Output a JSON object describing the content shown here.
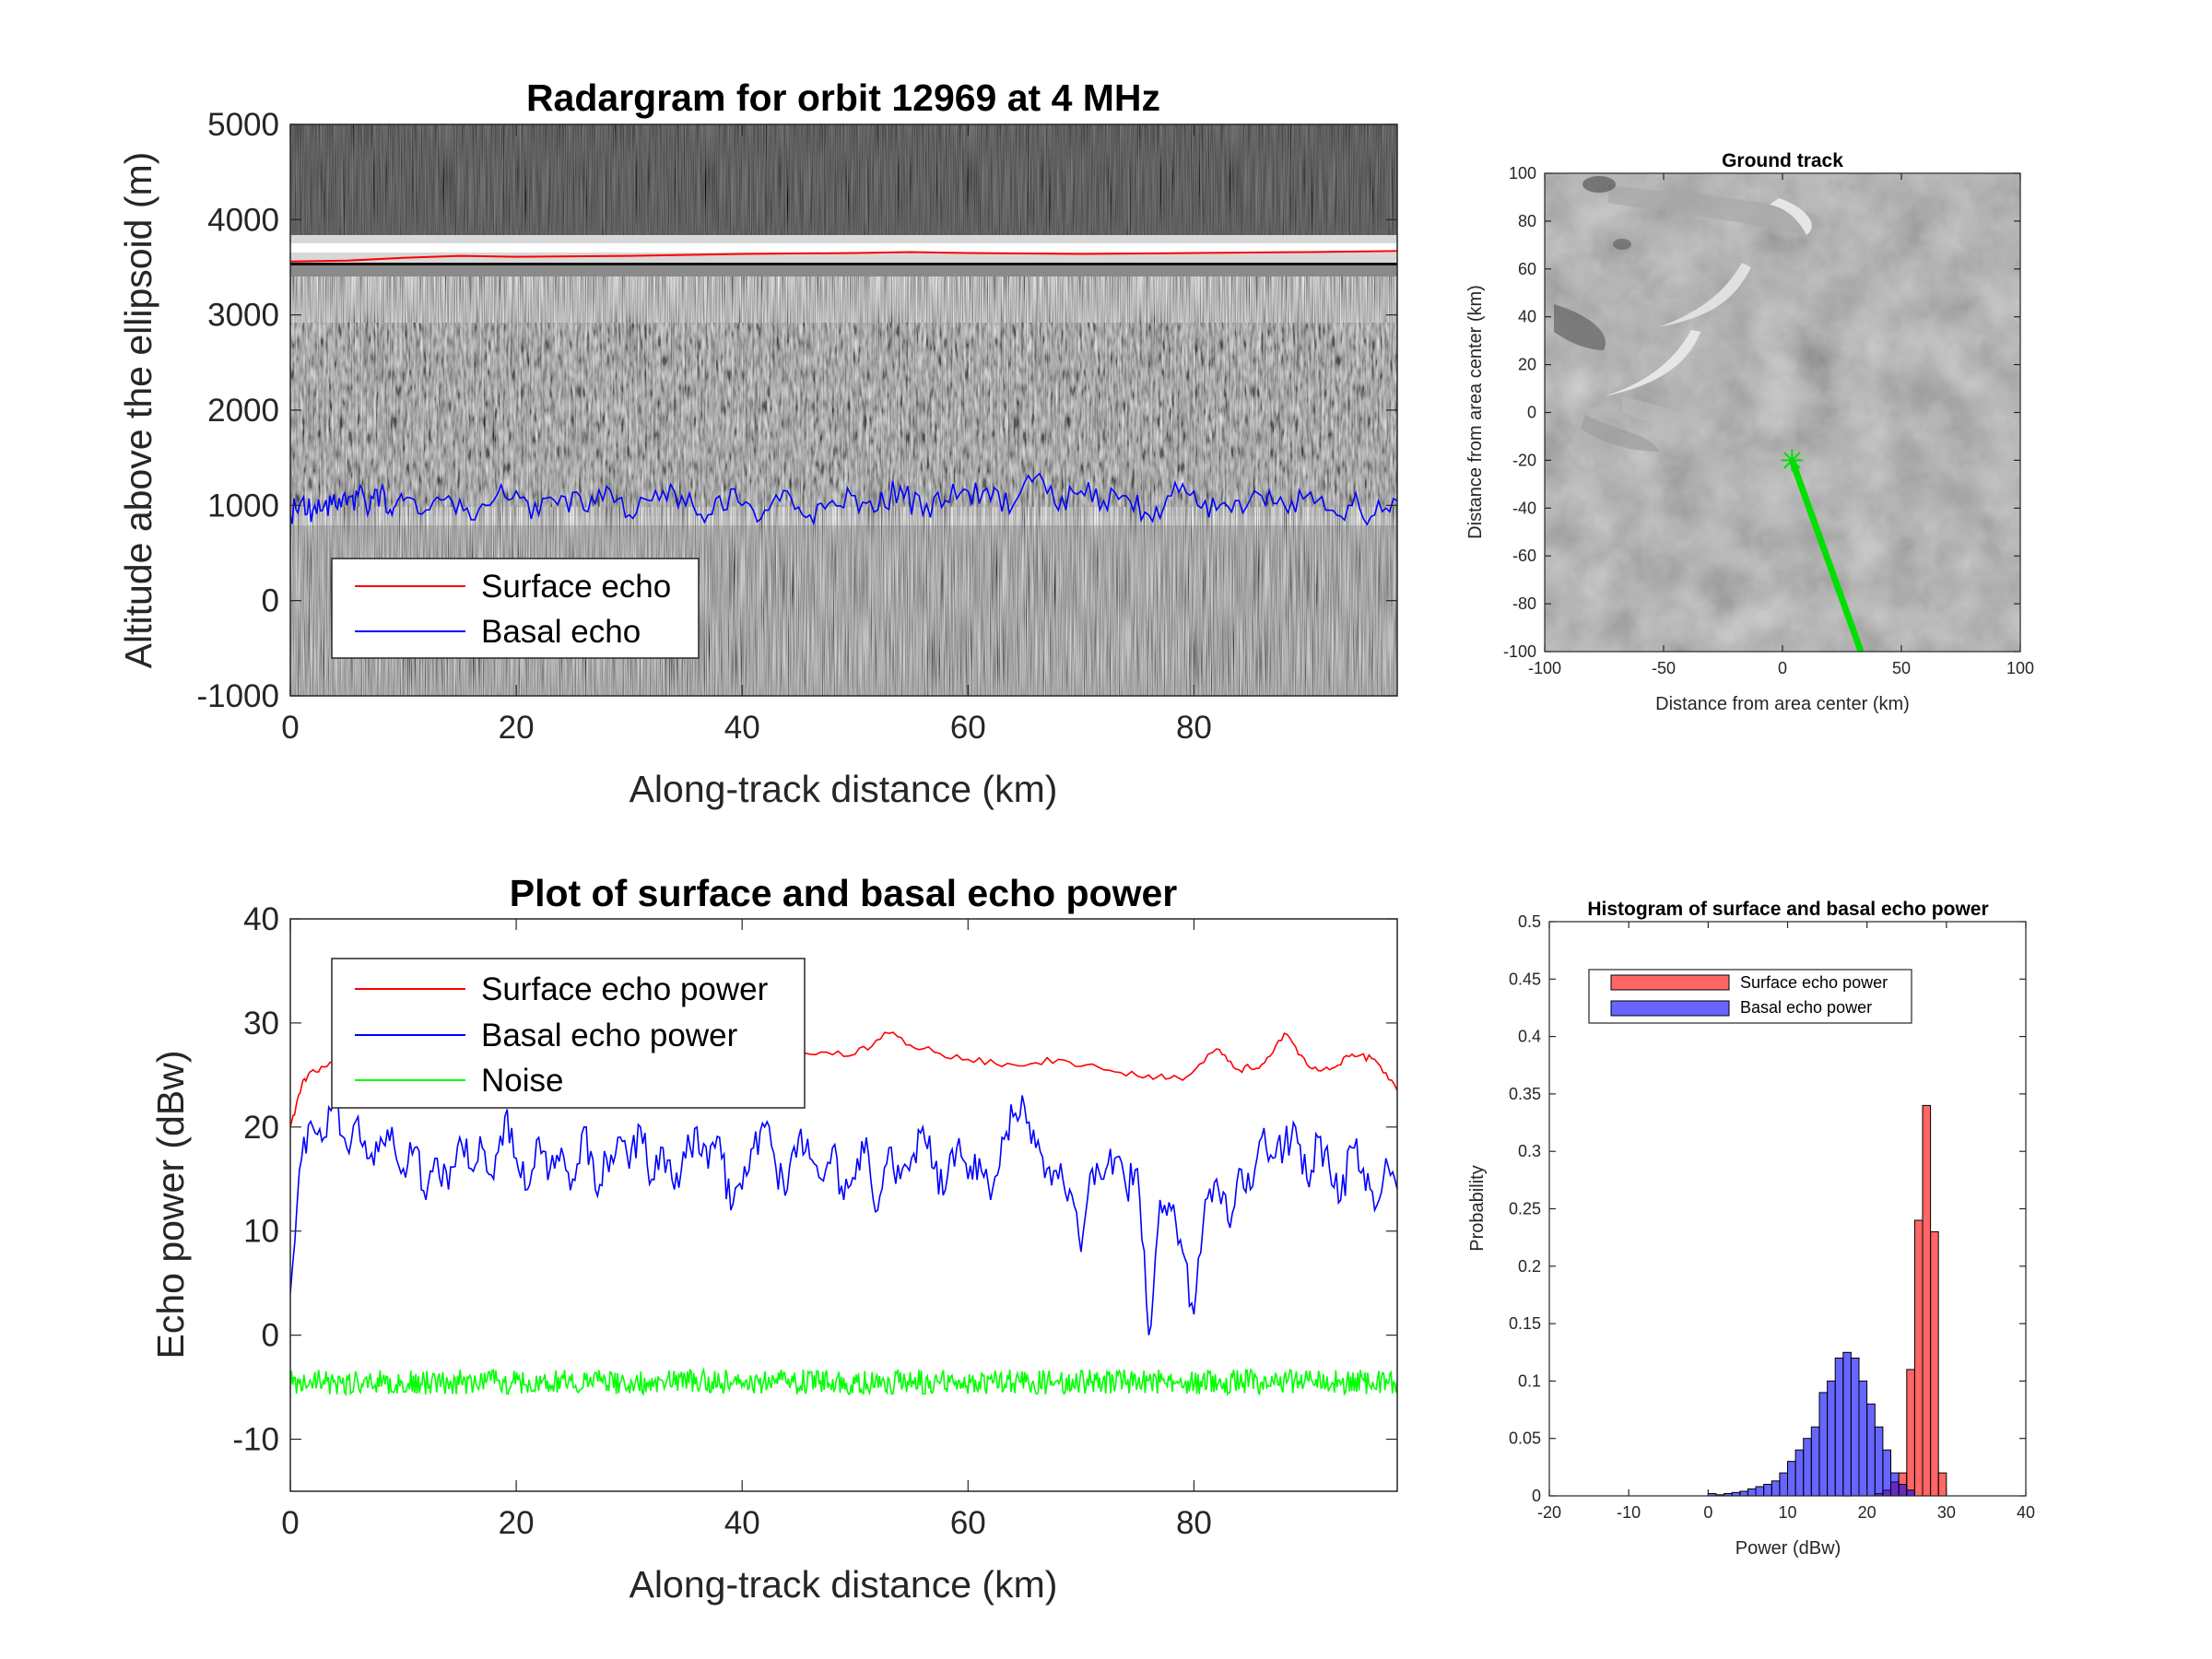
{
  "chart_data": [
    {
      "id": "radargram",
      "type": "heatmap",
      "title": "Radargram for orbit 12969 at 4 MHz",
      "xlabel": "Along-track distance (km)",
      "ylabel": "Altitude above the ellipsoid (m)",
      "xlim": [
        0,
        98
      ],
      "ylim": [
        -1000,
        5000
      ],
      "xticks": [
        "0",
        "20",
        "40",
        "60",
        "80"
      ],
      "yticks": [
        "-1000",
        "0",
        "1000",
        "2000",
        "3000",
        "4000",
        "5000"
      ],
      "colormap": "gray",
      "legend_position": "bottom-left",
      "series": [
        {
          "name": "Surface echo",
          "color": "#ff0000",
          "x": [
            0,
            5,
            10,
            15,
            20,
            30,
            40,
            50,
            55,
            60,
            70,
            80,
            90,
            98
          ],
          "y": [
            3560,
            3570,
            3600,
            3620,
            3610,
            3620,
            3640,
            3650,
            3660,
            3650,
            3640,
            3650,
            3660,
            3670
          ]
        },
        {
          "name": "Basal echo",
          "color": "#0000ff",
          "x": [
            0,
            1,
            2,
            3,
            4,
            5,
            6,
            7,
            8,
            9,
            10,
            12,
            14,
            16,
            18,
            20,
            22,
            24,
            26,
            28,
            30,
            32,
            34,
            36,
            38,
            40,
            42,
            44,
            46,
            48,
            50,
            52,
            54,
            56,
            58,
            60,
            62,
            64,
            66,
            68,
            70,
            72,
            74,
            76,
            78,
            80,
            82,
            84,
            86,
            88,
            90,
            92,
            94,
            96,
            98
          ],
          "y": [
            900,
            1050,
            950,
            1000,
            1000,
            1000,
            1100,
            950,
            1150,
            900,
            1050,
            950,
            1100,
            850,
            1050,
            1150,
            900,
            1100,
            950,
            1200,
            900,
            1050,
            1150,
            900,
            1100,
            1000,
            950,
            1150,
            900,
            1050,
            1100,
            950,
            1200,
            900,
            1050,
            1150,
            1050,
            1000,
            1300,
            950,
            1150,
            1050,
            1100,
            900,
            1100,
            1150,
            950,
            1050,
            1100,
            1000,
            1100,
            950,
            1000,
            900,
            1050
          ]
        }
      ]
    },
    {
      "id": "ground-track",
      "type": "scatter",
      "title": "Ground track",
      "xlabel": "Distance from area center (km)",
      "ylabel": "Distance from area center (km)",
      "xlim": [
        -100,
        100
      ],
      "ylim": [
        -100,
        100
      ],
      "xticks": [
        "-100",
        "-50",
        "0",
        "50",
        "100"
      ],
      "yticks": [
        "-100",
        "-80",
        "-60",
        "-40",
        "-20",
        "0",
        "20",
        "40",
        "60",
        "80",
        "100"
      ],
      "series": [
        {
          "color": "#00e000",
          "x": [
            4,
            33
          ],
          "y": [
            -20,
            -100
          ]
        }
      ],
      "marker": {
        "x": 4,
        "y": -20,
        "symbol": "asterisk"
      }
    },
    {
      "id": "echo-power",
      "type": "line",
      "title": "Plot of surface and basal echo power",
      "xlabel": "Along-track distance (km)",
      "ylabel": "Echo power (dBw)",
      "xlim": [
        0,
        98
      ],
      "ylim": [
        -15,
        40
      ],
      "xticks": [
        "0",
        "20",
        "40",
        "60",
        "80"
      ],
      "yticks": [
        "-10",
        "0",
        "10",
        "20",
        "30",
        "40"
      ],
      "legend_position": "top-left",
      "series": [
        {
          "name": "Surface echo power",
          "color": "#ff0000",
          "x": [
            0,
            1,
            2,
            4,
            6,
            8,
            10,
            14,
            18,
            22,
            26,
            30,
            34,
            38,
            42,
            46,
            50,
            53,
            56,
            60,
            64,
            68,
            72,
            76,
            79,
            82,
            84,
            86,
            88,
            90,
            92,
            94,
            96,
            98
          ],
          "y": [
            20,
            24,
            25.5,
            26,
            26,
            25.5,
            26,
            26,
            26.5,
            26.5,
            26,
            27,
            27,
            26.5,
            26.5,
            27,
            27,
            29,
            27.5,
            26.5,
            26,
            26.5,
            25.5,
            25,
            24.5,
            27.5,
            25.5,
            26,
            29,
            26,
            25.5,
            27,
            26.5,
            23.5
          ]
        },
        {
          "name": "Basal echo power",
          "color": "#0000ff",
          "x": [
            0,
            1,
            2,
            3,
            4,
            5,
            6,
            7,
            8,
            9,
            10,
            11,
            12,
            13,
            14,
            15,
            16,
            17,
            18,
            19,
            20,
            21,
            22,
            23,
            24,
            25,
            26,
            27,
            28,
            29,
            30,
            31,
            32,
            33,
            34,
            35,
            36,
            37,
            38,
            39,
            40,
            41,
            42,
            43,
            44,
            45,
            46,
            47,
            48,
            49,
            50,
            51,
            52,
            53,
            54,
            55,
            56,
            57,
            58,
            59,
            60,
            61,
            62,
            63,
            64,
            65,
            66,
            67,
            68,
            69,
            70,
            71,
            72,
            73,
            74,
            75,
            76,
            77,
            78,
            79,
            80,
            81,
            82,
            83,
            84,
            85,
            86,
            87,
            88,
            89,
            90,
            91,
            92,
            93,
            94,
            95,
            96,
            97,
            98
          ],
          "y": [
            4,
            17,
            20,
            19,
            22,
            18,
            21,
            17,
            19,
            20,
            16,
            18,
            13,
            17,
            14,
            19,
            16,
            18,
            15,
            21,
            17,
            14,
            19,
            16,
            18,
            15,
            20,
            14,
            17,
            19,
            16,
            20,
            15,
            18,
            14,
            17,
            20,
            16,
            19,
            12,
            14,
            18,
            20,
            16,
            14,
            19,
            17,
            15,
            18,
            13,
            15,
            19,
            12,
            18,
            15,
            17,
            20,
            16,
            14,
            18,
            15,
            17,
            13,
            19,
            21,
            22,
            18,
            16,
            15,
            14,
            8,
            16,
            15,
            17,
            14,
            16,
            0,
            13,
            12,
            8,
            2,
            13,
            15,
            11,
            16,
            14,
            19,
            17,
            18,
            20,
            15,
            19,
            16,
            13,
            18,
            16,
            12,
            17,
            14
          ]
        },
        {
          "name": "Noise",
          "color": "#00ff00",
          "x": [
            0,
            98
          ],
          "y": [
            -4.5,
            -4.5
          ],
          "noise_amplitude": 1.2
        }
      ]
    },
    {
      "id": "histogram",
      "type": "bar",
      "title": "Histogram of surface and basal echo power",
      "xlabel": "Power (dBw)",
      "ylabel": "Probability",
      "xlim": [
        -20,
        40
      ],
      "ylim": [
        0,
        0.5
      ],
      "xticks": [
        "-20",
        "-10",
        "0",
        "10",
        "20",
        "30",
        "40"
      ],
      "yticks": [
        "0",
        "0.05",
        "0.1",
        "0.15",
        "0.2",
        "0.25",
        "0.3",
        "0.35",
        "0.4",
        "0.45",
        "0.5"
      ],
      "legend_position": "top-left",
      "bin_width": 1,
      "series": [
        {
          "name": "Surface echo power",
          "color": "#ff0000",
          "bins": [
            21,
            22,
            23,
            24,
            25,
            26,
            27,
            28,
            29
          ],
          "values": [
            0.002,
            0.005,
            0.012,
            0.02,
            0.11,
            0.24,
            0.34,
            0.23,
            0.02
          ]
        },
        {
          "name": "Basal echo power",
          "color": "#0000ff",
          "bins": [
            0,
            1,
            2,
            3,
            4,
            5,
            6,
            7,
            8,
            9,
            10,
            11,
            12,
            13,
            14,
            15,
            16,
            17,
            18,
            19,
            20,
            21,
            22,
            23,
            24,
            25
          ],
          "values": [
            0.002,
            0.001,
            0.002,
            0.003,
            0.004,
            0.006,
            0.008,
            0.01,
            0.013,
            0.02,
            0.03,
            0.04,
            0.05,
            0.06,
            0.09,
            0.1,
            0.12,
            0.125,
            0.12,
            0.1,
            0.08,
            0.06,
            0.04,
            0.02,
            0.01,
            0.005
          ]
        }
      ]
    }
  ]
}
